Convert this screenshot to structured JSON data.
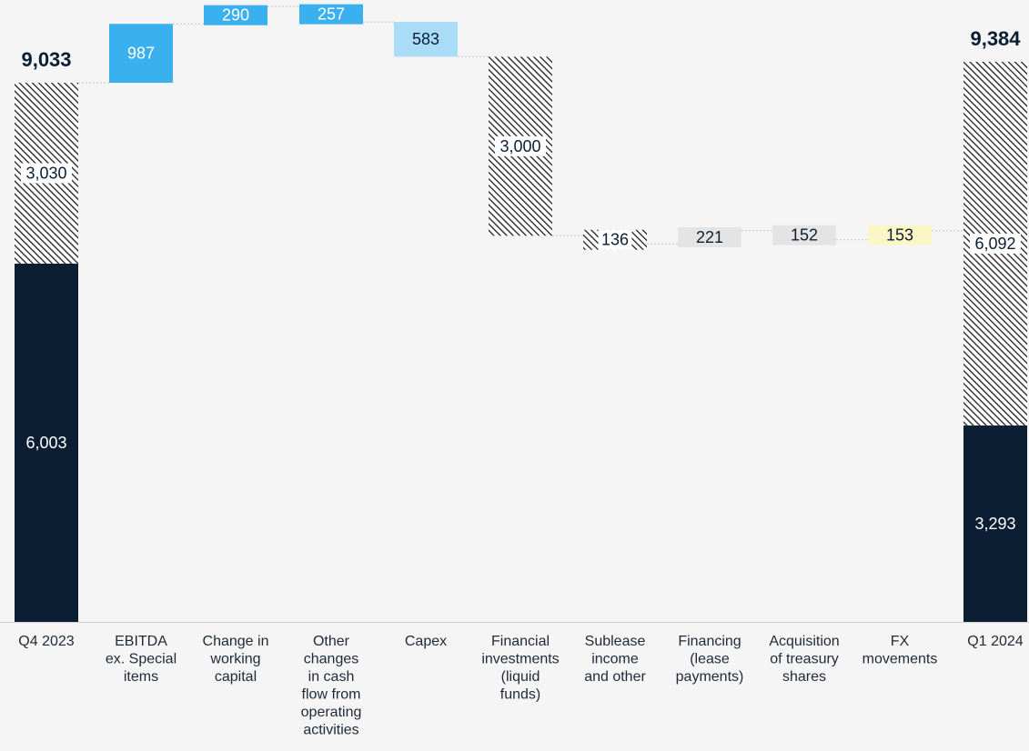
{
  "chart_data": {
    "type": "bar",
    "subtype": "waterfall",
    "unit_scale": "data units",
    "ylim": [
      0,
      9400
    ],
    "grid": false,
    "categories": [
      "Q4 2023",
      "EBITDA ex. Special items",
      "Change in working capital",
      "Other changes in cash flow from operating activities",
      "Capex",
      "Financial investments (liquid funds)",
      "Sublease income and other",
      "Financing (lease payments)",
      "Acquisition of treasury shares",
      "FX movements",
      "Q1 2024"
    ],
    "category_lines": [
      [
        "Q4 2023"
      ],
      [
        "EBITDA",
        "ex. Special",
        "items"
      ],
      [
        "Change in",
        "working",
        "capital"
      ],
      [
        "Other",
        "changes",
        "in cash",
        "flow from",
        "operating",
        "activities"
      ],
      [
        "Capex"
      ],
      [
        "Financial",
        "investments",
        "(liquid",
        "funds)"
      ],
      [
        "Sublease",
        "income",
        "and other"
      ],
      [
        "Financing",
        "(lease",
        "payments)"
      ],
      [
        "Acquisition",
        "of treasury",
        "shares"
      ],
      [
        "FX",
        "movements"
      ],
      [
        "Q1 2024"
      ]
    ],
    "bars": [
      {
        "kind": "total",
        "total_label": "9,033",
        "segments": [
          {
            "value": 6003,
            "label": "6,003",
            "style": "solid"
          },
          {
            "value": 3030,
            "label": "3,030",
            "style": "hatched"
          }
        ]
      },
      {
        "kind": "delta",
        "value": 987,
        "label": "987",
        "color": "#3ab0ee",
        "text_color": "#ffffff"
      },
      {
        "kind": "delta",
        "value": 290,
        "label": "290",
        "color": "#3ab0ee",
        "text_color": "#ffffff"
      },
      {
        "kind": "delta",
        "value": -257,
        "label": "257",
        "color": "#3ab0ee",
        "text_color": "#ffffff"
      },
      {
        "kind": "delta",
        "value": -583,
        "label": "583",
        "color": "#a8dcf7",
        "text_color": "#0b1e33"
      },
      {
        "kind": "delta",
        "value": -3000,
        "label": "3,000",
        "style": "hatched",
        "text_color": "#0b1e33"
      },
      {
        "kind": "delta",
        "value": -136,
        "label": "136",
        "style": "hatched",
        "text_color": "#0b1e33"
      },
      {
        "kind": "delta",
        "value": 221,
        "label": "221",
        "color": "#e4e4e4",
        "text_color": "#0b1e33"
      },
      {
        "kind": "delta",
        "value": -152,
        "label": "152",
        "color": "#e4e4e4",
        "text_color": "#0b1e33"
      },
      {
        "kind": "delta",
        "value": 153,
        "label": "153",
        "color": "#fbf6c6",
        "text_color": "#0b1e33"
      },
      {
        "kind": "total",
        "total_label": "9,384",
        "segments": [
          {
            "value": 3293,
            "label": "3,293",
            "style": "solid"
          },
          {
            "value": 6092,
            "label": "6,092",
            "style": "hatched"
          }
        ]
      }
    ],
    "colors": {
      "solid": "#0b1e33",
      "hatch_line": "#1c1c1c",
      "hatch_bg": "#ffffff",
      "connector": "#c8c8c8",
      "axis": "#d0d0d0"
    }
  }
}
